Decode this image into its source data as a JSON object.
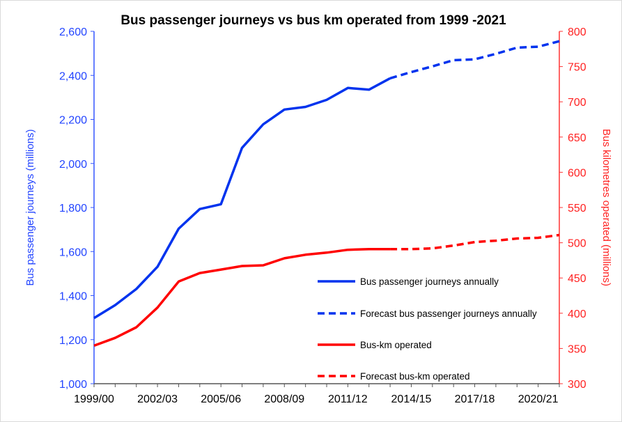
{
  "chart_data": {
    "type": "line",
    "title": "Bus passenger journeys vs bus km operated from 1999 -2021",
    "xlabel": "",
    "ylabel_left": "Bus passenger journeys (millions)",
    "ylabel_right": "Bus kilometres operated (millions)",
    "ylim_left": [
      1000,
      2600
    ],
    "ylim_right": [
      300,
      800
    ],
    "yticks_left": [
      "1,000",
      "1,200",
      "1,400",
      "1,600",
      "1,800",
      "2,000",
      "2,200",
      "2,400",
      "2,600"
    ],
    "yticks_right": [
      "300",
      "350",
      "400",
      "450",
      "500",
      "550",
      "600",
      "650",
      "700",
      "750",
      "800"
    ],
    "categories": [
      "1999/00",
      "2000/01",
      "2001/02",
      "2002/03",
      "2003/04",
      "2004/05",
      "2005/06",
      "2006/07",
      "2007/08",
      "2008/09",
      "2009/10",
      "2010/11",
      "2011/12",
      "2012/13",
      "2013/14",
      "2014/15",
      "2015/16",
      "2016/17",
      "2017/18",
      "2018/19",
      "2019/20",
      "2020/21",
      "2021/22"
    ],
    "xtick_labels": [
      "1999/00",
      "2002/03",
      "2005/06",
      "2008/09",
      "2011/12",
      "2014/15",
      "2017/18",
      "2020/21"
    ],
    "grid": false,
    "legend_placement": "bottom-right",
    "series": [
      {
        "name": "Bus passenger journeys annually",
        "axis": "left",
        "color": "#0033ee",
        "dashed": false,
        "values": [
          1298,
          1357,
          1430,
          1531,
          1704,
          1793,
          1815,
          2071,
          2178,
          2245,
          2257,
          2289,
          2343,
          2335,
          2387,
          null,
          null,
          null,
          null,
          null,
          null,
          null,
          null
        ]
      },
      {
        "name": "Forecast bus passenger journeys annually",
        "axis": "left",
        "color": "#0033ee",
        "dashed": true,
        "values": [
          null,
          null,
          null,
          null,
          null,
          null,
          null,
          null,
          null,
          null,
          null,
          null,
          null,
          null,
          2387,
          2415,
          2441,
          2469,
          2473,
          2498,
          2526,
          2530,
          2555
        ]
      },
      {
        "name": "Bus-km operated",
        "axis": "right",
        "color": "#ff0000",
        "dashed": false,
        "values": [
          354,
          365,
          380,
          408,
          445,
          457,
          462,
          467,
          468,
          478,
          483,
          486,
          490,
          491,
          491,
          null,
          null,
          null,
          null,
          null,
          null,
          null,
          null
        ]
      },
      {
        "name": "Forecast bus-km operated",
        "axis": "right",
        "color": "#ff0000",
        "dashed": true,
        "values": [
          null,
          null,
          null,
          null,
          null,
          null,
          null,
          null,
          null,
          null,
          null,
          null,
          null,
          null,
          491,
          491,
          492,
          496,
          501,
          503,
          506,
          507,
          511
        ]
      }
    ],
    "colors": {
      "left_axis": "#3355ff",
      "right_axis": "#ff3333"
    }
  }
}
